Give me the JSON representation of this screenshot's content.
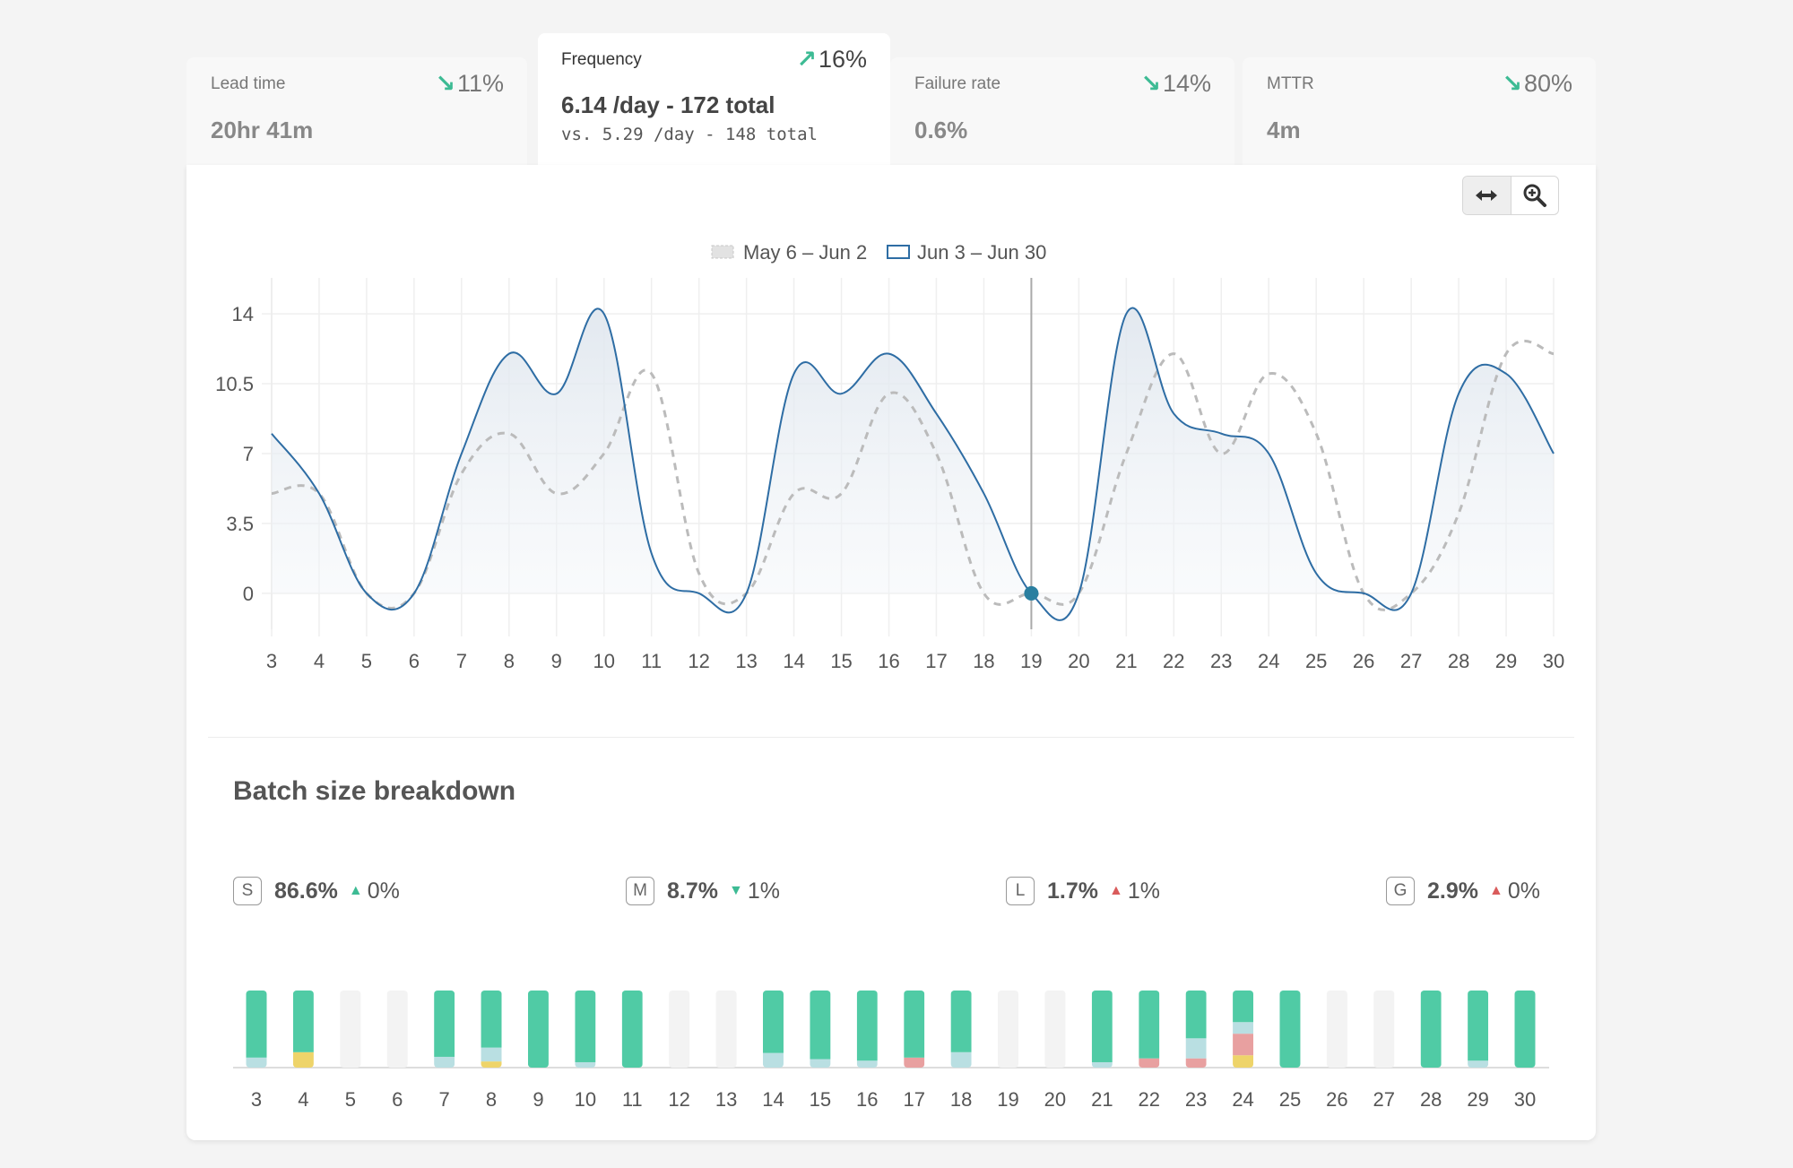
{
  "tabs": [
    {
      "label": "Lead time",
      "delta": "11%",
      "direction": "down",
      "value": "20hr 41m",
      "sub": ""
    },
    {
      "label": "Frequency",
      "delta": "16%",
      "direction": "up",
      "value": "6.14 /day - 172 total",
      "sub": "vs. 5.29 /day - 148 total"
    },
    {
      "label": "Failure rate",
      "delta": "14%",
      "direction": "down",
      "value": "0.6%",
      "sub": ""
    },
    {
      "label": "MTTR",
      "delta": "80%",
      "direction": "down",
      "value": "4m",
      "sub": ""
    }
  ],
  "active_tab": 1,
  "toolbar": {
    "pan_icon": "pan-horizontal-icon",
    "zoom_icon": "zoom-in-icon"
  },
  "colors": {
    "accent": "#2e6da4",
    "previous": "#bbbbbb",
    "small": "#50cba5",
    "medium": "#b9dfe2",
    "large": "#e8a0a0",
    "giant": "#eed46a"
  },
  "chart_data": [
    {
      "type": "line",
      "legend": [
        "May 6 – Jun 2",
        "Jun 3 – Jun 30"
      ],
      "legend_position": "top-center",
      "x": [
        3,
        4,
        5,
        6,
        7,
        8,
        9,
        10,
        11,
        12,
        13,
        14,
        15,
        16,
        17,
        18,
        19,
        20,
        21,
        22,
        23,
        24,
        25,
        26,
        27,
        28,
        29,
        30
      ],
      "series": [
        {
          "name": "May 6 – Jun 2",
          "style": "dashed",
          "values": [
            5,
            5,
            0,
            0,
            6,
            8,
            5,
            7,
            11,
            1,
            0,
            5,
            5,
            10,
            7,
            0,
            0,
            0,
            7,
            12,
            7,
            11,
            8,
            0,
            0,
            4,
            12,
            12
          ]
        },
        {
          "name": "Jun 3 – Jun 30",
          "style": "solid",
          "values": [
            8,
            5,
            0,
            0,
            7,
            12,
            10,
            14,
            2,
            0,
            0,
            11,
            10,
            12,
            9,
            5,
            0,
            0,
            14,
            9,
            8,
            7,
            1,
            0,
            0,
            10,
            11,
            7
          ]
        }
      ],
      "y_ticks": [
        0,
        3.5,
        7,
        10.5,
        14
      ],
      "ylim": [
        -1.8,
        15.8
      ],
      "grid": true,
      "hover_x": 19
    },
    {
      "type": "bar",
      "stacked": true,
      "title": "Batch size breakdown",
      "categories": [
        3,
        4,
        5,
        6,
        7,
        8,
        9,
        10,
        11,
        12,
        13,
        14,
        15,
        16,
        17,
        18,
        19,
        20,
        21,
        22,
        23,
        24,
        25,
        26,
        27,
        28,
        29,
        30
      ],
      "shares": [
        {
          "s": 0.87,
          "m": 0.13,
          "l": 0,
          "g": 0
        },
        {
          "s": 0.8,
          "m": 0,
          "l": 0,
          "g": 0.2
        },
        null,
        null,
        {
          "s": 0.86,
          "m": 0.14,
          "l": 0,
          "g": 0
        },
        {
          "s": 0.74,
          "m": 0.18,
          "l": 0,
          "g": 0.08
        },
        {
          "s": 1,
          "m": 0,
          "l": 0,
          "g": 0
        },
        {
          "s": 0.93,
          "m": 0.07,
          "l": 0,
          "g": 0
        },
        {
          "s": 1,
          "m": 0,
          "l": 0,
          "g": 0
        },
        null,
        null,
        {
          "s": 0.81,
          "m": 0.19,
          "l": 0,
          "g": 0
        },
        {
          "s": 0.89,
          "m": 0.11,
          "l": 0,
          "g": 0
        },
        {
          "s": 0.91,
          "m": 0.09,
          "l": 0,
          "g": 0
        },
        {
          "s": 0.87,
          "m": 0,
          "l": 0.13,
          "g": 0
        },
        {
          "s": 0.8,
          "m": 0.2,
          "l": 0,
          "g": 0
        },
        null,
        null,
        {
          "s": 0.93,
          "m": 0.07,
          "l": 0,
          "g": 0
        },
        {
          "s": 0.88,
          "m": 0,
          "l": 0.12,
          "g": 0
        },
        {
          "s": 0.62,
          "m": 0.26,
          "l": 0.12,
          "g": 0
        },
        {
          "s": 0.41,
          "m": 0.15,
          "l": 0.28,
          "g": 0.16
        },
        {
          "s": 1,
          "m": 0,
          "l": 0,
          "g": 0
        },
        null,
        null,
        {
          "s": 1,
          "m": 0,
          "l": 0,
          "g": 0
        },
        {
          "s": 0.91,
          "m": 0.09,
          "l": 0,
          "g": 0
        },
        {
          "s": 1,
          "m": 0,
          "l": 0,
          "g": 0
        }
      ]
    }
  ],
  "batch_stats": [
    {
      "badge": "S",
      "pct": "86.6%",
      "delta": "0%",
      "direction": "up"
    },
    {
      "badge": "M",
      "pct": "8.7%",
      "delta": "1%",
      "direction": "down"
    },
    {
      "badge": "L",
      "pct": "1.7%",
      "delta": "1%",
      "direction": "up"
    },
    {
      "badge": "G",
      "pct": "2.9%",
      "delta": "0%",
      "direction": "up"
    }
  ]
}
